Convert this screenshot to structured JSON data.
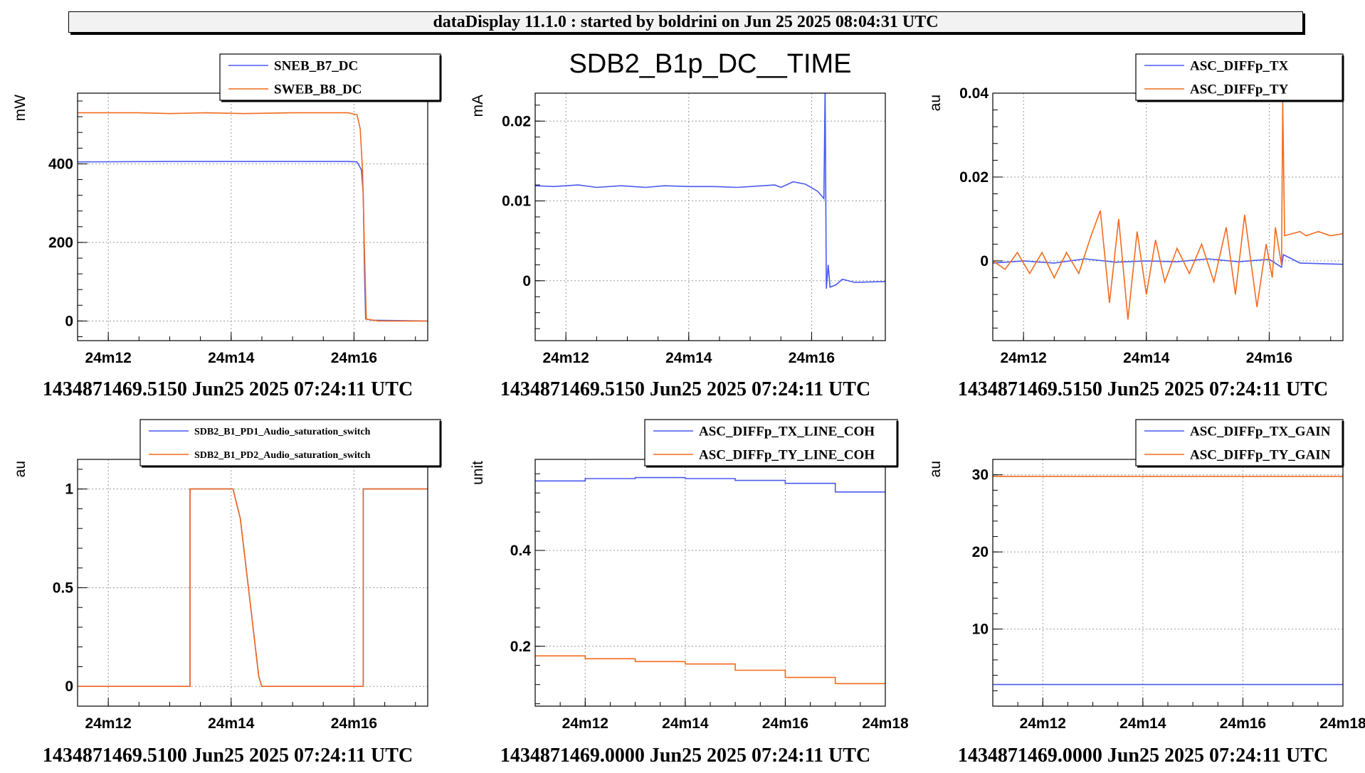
{
  "header": {
    "title": "dataDisplay 11.1.0 : started by boldrini on Jun 25 2025 08:04:31 UTC"
  },
  "colors": {
    "blue": "#4a5af0",
    "orange": "#f26b1d",
    "grid": "#9a9a9a"
  },
  "chart_data": [
    {
      "type": "line",
      "title": "",
      "ylabel": "mW",
      "footer": "1434871469.5150 Jun25 2025 07:24:11 UTC",
      "xlim": [
        1451.5,
        1457.2
      ],
      "ylim": [
        -50,
        580
      ],
      "xticks": [
        {
          "v": 1452,
          "label": "24m12"
        },
        {
          "v": 1454,
          "label": "24m14"
        },
        {
          "v": 1456,
          "label": "24m16"
        }
      ],
      "yticks": [
        {
          "v": 0,
          "label": "0"
        },
        {
          "v": 200,
          "label": "200"
        },
        {
          "v": 400,
          "label": "400"
        }
      ],
      "series": [
        {
          "name": "SNEB_B7_DC",
          "color": "blue",
          "points": [
            [
              1451.5,
              405
            ],
            [
              1453.0,
              406
            ],
            [
              1454.5,
              406
            ],
            [
              1455.9,
              406
            ],
            [
              1456.05,
              405
            ],
            [
              1456.12,
              385
            ],
            [
              1456.15,
              325
            ],
            [
              1456.17,
              130
            ],
            [
              1456.19,
              5
            ],
            [
              1456.3,
              2
            ],
            [
              1457.2,
              0
            ]
          ]
        },
        {
          "name": "SWEB_B8_DC",
          "color": "orange",
          "points": [
            [
              1451.5,
              530
            ],
            [
              1452.5,
              530
            ],
            [
              1453.0,
              528
            ],
            [
              1453.6,
              530
            ],
            [
              1454.2,
              528
            ],
            [
              1455.0,
              530
            ],
            [
              1455.9,
              530
            ],
            [
              1456.05,
              525
            ],
            [
              1456.1,
              490
            ],
            [
              1456.14,
              380
            ],
            [
              1456.17,
              180
            ],
            [
              1456.2,
              5
            ],
            [
              1456.4,
              0
            ],
            [
              1457.2,
              0
            ]
          ]
        }
      ]
    },
    {
      "type": "line",
      "title": "SDB2_B1p_DC__TIME",
      "ylabel": "mA",
      "footer": "1434871469.5150 Jun25 2025 07:24:11 UTC",
      "xlim": [
        1451.5,
        1457.2
      ],
      "ylim": [
        -0.0075,
        0.0235
      ],
      "xticks": [
        {
          "v": 1452,
          "label": "24m12"
        },
        {
          "v": 1454,
          "label": "24m14"
        },
        {
          "v": 1456,
          "label": "24m16"
        }
      ],
      "yticks": [
        {
          "v": 0,
          "label": "0"
        },
        {
          "v": 0.01,
          "label": "0.01"
        },
        {
          "v": 0.02,
          "label": "0.02"
        }
      ],
      "series": [
        {
          "name": "",
          "color": "blue",
          "points": [
            [
              1451.5,
              0.0119
            ],
            [
              1451.8,
              0.0118
            ],
            [
              1452.2,
              0.012
            ],
            [
              1452.5,
              0.0117
            ],
            [
              1452.9,
              0.0119
            ],
            [
              1453.3,
              0.0117
            ],
            [
              1453.6,
              0.0119
            ],
            [
              1454.0,
              0.0118
            ],
            [
              1454.4,
              0.0118
            ],
            [
              1454.8,
              0.0117
            ],
            [
              1455.2,
              0.0119
            ],
            [
              1455.4,
              0.012
            ],
            [
              1455.5,
              0.0117
            ],
            [
              1455.7,
              0.0124
            ],
            [
              1455.9,
              0.0121
            ],
            [
              1456.1,
              0.0112
            ],
            [
              1456.2,
              0.0103
            ],
            [
              1456.22,
              0.0245
            ],
            [
              1456.24,
              -0.001
            ],
            [
              1456.27,
              0.002
            ],
            [
              1456.3,
              -0.0008
            ],
            [
              1456.4,
              -0.0005
            ],
            [
              1456.5,
              0.0002
            ],
            [
              1456.7,
              -0.0002
            ],
            [
              1457.2,
              -0.0001
            ]
          ]
        }
      ]
    },
    {
      "type": "line",
      "title": "",
      "ylabel": "au",
      "footer": "1434871469.5150 Jun25 2025 07:24:11 UTC",
      "xlim": [
        1451.5,
        1457.2
      ],
      "ylim": [
        -0.019,
        0.04
      ],
      "xticks": [
        {
          "v": 1452,
          "label": "24m12"
        },
        {
          "v": 1454,
          "label": "24m14"
        },
        {
          "v": 1456,
          "label": "24m16"
        }
      ],
      "yticks": [
        {
          "v": 0,
          "label": "0"
        },
        {
          "v": 0.02,
          "label": "0.02"
        },
        {
          "v": 0.04,
          "label": "0.04"
        }
      ],
      "series": [
        {
          "name": "ASC_DIFFp_TX",
          "color": "blue",
          "points": [
            [
              1451.5,
              -0.0005
            ],
            [
              1452.0,
              0.0
            ],
            [
              1452.5,
              -0.0005
            ],
            [
              1453.0,
              0.0005
            ],
            [
              1453.5,
              -0.0003
            ],
            [
              1454.0,
              0.0
            ],
            [
              1454.5,
              -0.0002
            ],
            [
              1455.0,
              0.0005
            ],
            [
              1455.5,
              -0.0002
            ],
            [
              1456.0,
              0.0004
            ],
            [
              1456.2,
              -0.0015
            ],
            [
              1456.23,
              0.0015
            ],
            [
              1456.5,
              -0.0005
            ],
            [
              1457.2,
              -0.0008
            ]
          ]
        },
        {
          "name": "ASC_DIFFp_TY",
          "color": "orange",
          "points": [
            [
              1451.5,
              0.0
            ],
            [
              1451.7,
              -0.002
            ],
            [
              1451.9,
              0.002
            ],
            [
              1452.1,
              -0.003
            ],
            [
              1452.3,
              0.002
            ],
            [
              1452.5,
              -0.004
            ],
            [
              1452.7,
              0.002
            ],
            [
              1452.9,
              -0.003
            ],
            [
              1453.1,
              0.006
            ],
            [
              1453.25,
              0.012
            ],
            [
              1453.4,
              -0.01
            ],
            [
              1453.55,
              0.01
            ],
            [
              1453.7,
              -0.014
            ],
            [
              1453.85,
              0.007
            ],
            [
              1454.0,
              -0.008
            ],
            [
              1454.15,
              0.005
            ],
            [
              1454.3,
              -0.005
            ],
            [
              1454.5,
              0.003
            ],
            [
              1454.7,
              -0.003
            ],
            [
              1454.9,
              0.004
            ],
            [
              1455.1,
              -0.005
            ],
            [
              1455.3,
              0.008
            ],
            [
              1455.45,
              -0.008
            ],
            [
              1455.6,
              0.011
            ],
            [
              1455.8,
              -0.011
            ],
            [
              1455.95,
              0.004
            ],
            [
              1456.05,
              -0.004
            ],
            [
              1456.1,
              0.008
            ],
            [
              1456.2,
              -0.001
            ],
            [
              1456.22,
              0.038
            ],
            [
              1456.25,
              0.006
            ],
            [
              1456.5,
              0.007
            ],
            [
              1456.6,
              0.006
            ],
            [
              1456.8,
              0.007
            ],
            [
              1457.0,
              0.006
            ],
            [
              1457.2,
              0.0065
            ]
          ]
        }
      ]
    },
    {
      "type": "line",
      "title": "",
      "ylabel": "au",
      "footer": "1434871469.5100 Jun25 2025 07:24:11 UTC",
      "xlim": [
        1451.5,
        1457.2
      ],
      "ylim": [
        -0.1,
        1.15
      ],
      "xticks": [
        {
          "v": 1452,
          "label": "24m12"
        },
        {
          "v": 1454,
          "label": "24m14"
        },
        {
          "v": 1456,
          "label": "24m16"
        }
      ],
      "yticks": [
        {
          "v": 0,
          "label": "0"
        },
        {
          "v": 0.5,
          "label": "0.5"
        },
        {
          "v": 1,
          "label": "1"
        }
      ],
      "series": [
        {
          "name": "SDB2_B1_PD1_Audio_saturation_switch",
          "color": "blue",
          "points": [
            [
              1451.5,
              0
            ],
            [
              1453.33,
              0
            ],
            [
              1453.33,
              1
            ],
            [
              1454.03,
              1
            ],
            [
              1454.15,
              0.85
            ],
            [
              1454.3,
              0.45
            ],
            [
              1454.45,
              0.05
            ],
            [
              1454.5,
              0
            ],
            [
              1456.15,
              0
            ],
            [
              1456.15,
              1
            ],
            [
              1457.2,
              1
            ]
          ]
        },
        {
          "name": "SDB2_B1_PD2_Audio_saturation_switch",
          "color": "orange",
          "points": [
            [
              1451.5,
              0
            ],
            [
              1453.33,
              0
            ],
            [
              1453.33,
              1
            ],
            [
              1454.03,
              1
            ],
            [
              1454.15,
              0.85
            ],
            [
              1454.3,
              0.45
            ],
            [
              1454.45,
              0.05
            ],
            [
              1454.5,
              0
            ],
            [
              1456.15,
              0
            ],
            [
              1456.15,
              1
            ],
            [
              1457.2,
              1
            ]
          ]
        }
      ]
    },
    {
      "type": "line",
      "title": "",
      "ylabel": "unit",
      "footer": "1434871469.0000 Jun25 2025 07:24:11 UTC",
      "xlim": [
        1451.0,
        1458.0
      ],
      "ylim": [
        0.075,
        0.59
      ],
      "xticks": [
        {
          "v": 1452,
          "label": "24m12"
        },
        {
          "v": 1454,
          "label": "24m14"
        },
        {
          "v": 1456,
          "label": "24m16"
        },
        {
          "v": 1458,
          "label": "24m18"
        }
      ],
      "yticks": [
        {
          "v": 0.2,
          "label": "0.2"
        },
        {
          "v": 0.4,
          "label": "0.4"
        }
      ],
      "series": [
        {
          "name": "ASC_DIFFp_TX_LINE_COH",
          "color": "blue",
          "steps": [
            [
              1451,
              0.545
            ],
            [
              1452,
              0.55
            ],
            [
              1453,
              0.552
            ],
            [
              1454,
              0.55
            ],
            [
              1455,
              0.546
            ],
            [
              1456,
              0.54
            ],
            [
              1457,
              0.522
            ]
          ],
          "xend": 1458
        },
        {
          "name": "ASC_DIFFp_TY_LINE_COH",
          "color": "orange",
          "steps": [
            [
              1451,
              0.18
            ],
            [
              1452,
              0.174
            ],
            [
              1453,
              0.168
            ],
            [
              1454,
              0.163
            ],
            [
              1455,
              0.15
            ],
            [
              1456,
              0.135
            ],
            [
              1457,
              0.122
            ]
          ],
          "xend": 1458
        }
      ]
    },
    {
      "type": "line",
      "title": "",
      "ylabel": "au",
      "footer": "1434871469.0000 Jun25 2025 07:24:11 UTC",
      "xlim": [
        1451.0,
        1458.0
      ],
      "ylim": [
        0,
        32
      ],
      "xticks": [
        {
          "v": 1452,
          "label": "24m12"
        },
        {
          "v": 1454,
          "label": "24m14"
        },
        {
          "v": 1456,
          "label": "24m16"
        },
        {
          "v": 1458,
          "label": "24m18"
        }
      ],
      "yticks": [
        {
          "v": 10,
          "label": "10"
        },
        {
          "v": 20,
          "label": "20"
        },
        {
          "v": 30,
          "label": "30"
        }
      ],
      "series": [
        {
          "name": "ASC_DIFFp_TX_GAIN",
          "color": "blue",
          "points": [
            [
              1451,
              2.8
            ],
            [
              1458,
              2.8
            ]
          ]
        },
        {
          "name": "ASC_DIFFp_TY_GAIN",
          "color": "orange",
          "points": [
            [
              1451,
              29.8
            ],
            [
              1458,
              29.8
            ]
          ]
        }
      ]
    }
  ]
}
